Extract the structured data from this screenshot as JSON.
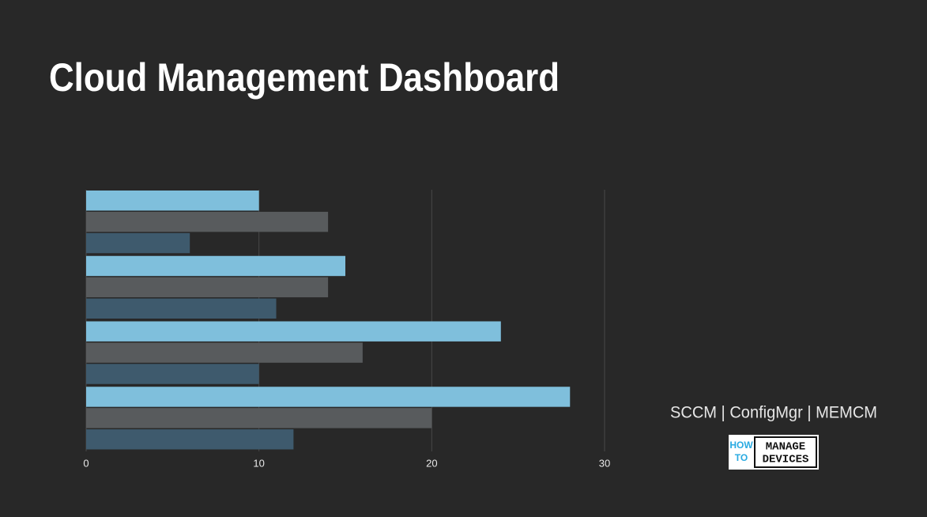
{
  "title": "Cloud Management Dashboard",
  "chart_data": {
    "type": "hbar",
    "categories": [
      null,
      null,
      null,
      null
    ],
    "series": [
      {
        "color": "#7fbfdc",
        "values": [
          10,
          15,
          24,
          28
        ]
      },
      {
        "color": "#585b5d",
        "values": [
          14,
          14,
          16,
          20
        ]
      },
      {
        "color": "#3e5a6d",
        "values": [
          6,
          11,
          10,
          12
        ]
      }
    ],
    "xlim": [
      0,
      30
    ],
    "xticks": [
      0,
      10,
      20,
      30
    ],
    "grid": true
  },
  "brand": {
    "tagline": "SCCM | ConfigMgr | MEMCM",
    "logo": [
      "HOW",
      "TO",
      "MANAGE",
      "DEVICES"
    ]
  }
}
